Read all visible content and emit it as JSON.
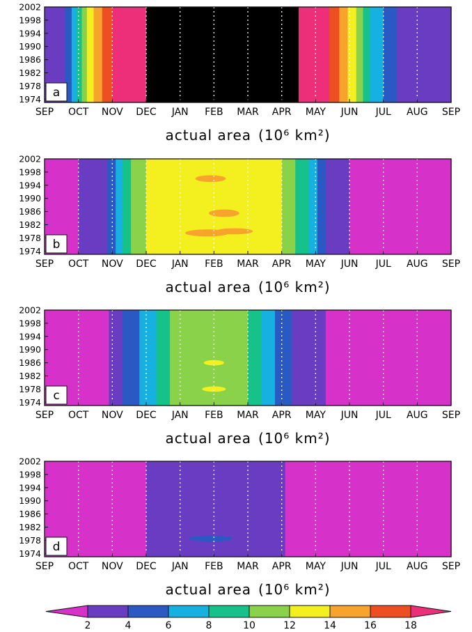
{
  "chart_data": {
    "type": "heatmap",
    "panels": [
      {
        "label": "a",
        "xlabel": "actual area",
        "x_unit": "(10⁶ km²)",
        "x_ticks": [
          "SEP",
          "OCT",
          "NOV",
          "DEC",
          "JAN",
          "FEB",
          "MAR",
          "APR",
          "MAY",
          "JUN",
          "JUL",
          "AUG",
          "SEP"
        ],
        "y_ticks": [
          "2002",
          "1998",
          "1994",
          "1990",
          "1986",
          "1982",
          "1978",
          "1974"
        ],
        "y_range": [
          1973,
          2002
        ],
        "bands": [
          {
            "level": 1,
            "x0": 0.0,
            "x1": 0.6
          },
          {
            "level": 2,
            "x0": 0.6,
            "x1": 0.8
          },
          {
            "level": 3,
            "x0": 0.8,
            "x1": 0.95
          },
          {
            "level": 4,
            "x0": 0.95,
            "x1": 1.1
          },
          {
            "level": 5,
            "x0": 1.1,
            "x1": 1.25
          },
          {
            "level": 6,
            "x0": 1.25,
            "x1": 1.45
          },
          {
            "level": 7,
            "x0": 1.45,
            "x1": 1.7
          },
          {
            "level": 8,
            "x0": 1.7,
            "x1": 2.0
          },
          {
            "level": 9,
            "x0": 2.0,
            "x1": 3.0
          },
          {
            "level": 10,
            "x0": 3.0,
            "x1": 7.5
          },
          {
            "level": 9,
            "x0": 7.5,
            "x1": 8.4
          },
          {
            "level": 8,
            "x0": 8.4,
            "x1": 8.7
          },
          {
            "level": 7,
            "x0": 8.7,
            "x1": 8.95
          },
          {
            "level": 6,
            "x0": 8.95,
            "x1": 9.2
          },
          {
            "level": 5,
            "x0": 9.2,
            "x1": 9.4
          },
          {
            "level": 4,
            "x0": 9.4,
            "x1": 9.6
          },
          {
            "level": 3,
            "x0": 9.6,
            "x1": 10.0
          },
          {
            "level": 2,
            "x0": 10.0,
            "x1": 10.4
          },
          {
            "level": 1,
            "x0": 10.4,
            "x1": 12.0
          }
        ]
      },
      {
        "label": "b",
        "xlabel": "actual area",
        "x_unit": "(10⁶ km²)",
        "x_ticks": [
          "SEP",
          "OCT",
          "NOV",
          "DEC",
          "JAN",
          "FEB",
          "MAR",
          "APR",
          "MAY",
          "JUN",
          "JUL",
          "AUG",
          "SEP"
        ],
        "y_ticks": [
          "2002",
          "1998",
          "1994",
          "1990",
          "1986",
          "1982",
          "1978",
          "1974"
        ],
        "y_range": [
          1973,
          2002
        ],
        "bands": [
          {
            "level": 0,
            "x0": 0.0,
            "x1": 1.0
          },
          {
            "level": 1,
            "x0": 1.0,
            "x1": 1.85
          },
          {
            "level": 2,
            "x0": 1.85,
            "x1": 2.1
          },
          {
            "level": 3,
            "x0": 2.1,
            "x1": 2.3
          },
          {
            "level": 4,
            "x0": 2.3,
            "x1": 2.55
          },
          {
            "level": 5,
            "x0": 2.55,
            "x1": 3.0
          },
          {
            "level": 6,
            "x0": 3.0,
            "x1": 7.0
          },
          {
            "level": 5,
            "x0": 7.0,
            "x1": 7.4
          },
          {
            "level": 4,
            "x0": 7.4,
            "x1": 7.8
          },
          {
            "level": 3,
            "x0": 7.8,
            "x1": 8.05
          },
          {
            "level": 2,
            "x0": 8.05,
            "x1": 8.3
          },
          {
            "level": 1,
            "x0": 8.3,
            "x1": 9.0
          },
          {
            "level": 0,
            "x0": 9.0,
            "x1": 12.0
          }
        ],
        "patches": [
          {
            "level": 7,
            "x": 4.9,
            "y": 1996,
            "w": 0.9,
            "h": 1.2
          },
          {
            "level": 7,
            "x": 5.3,
            "y": 1985.5,
            "w": 0.9,
            "h": 1.4
          },
          {
            "level": 7,
            "x": 4.8,
            "y": 1979.5,
            "w": 1.3,
            "h": 1.3
          },
          {
            "level": 7,
            "x": 5.6,
            "y": 1980,
            "w": 1.1,
            "h": 1.0
          }
        ]
      },
      {
        "label": "c",
        "xlabel": "actual area",
        "x_unit": "(10⁶ km²)",
        "x_ticks": [
          "SEP",
          "OCT",
          "NOV",
          "DEC",
          "JAN",
          "FEB",
          "MAR",
          "APR",
          "MAY",
          "JUN",
          "JUL",
          "AUG",
          "SEP"
        ],
        "y_ticks": [
          "2002",
          "1998",
          "1994",
          "1990",
          "1986",
          "1982",
          "1978",
          "1974"
        ],
        "y_range": [
          1973,
          2002
        ],
        "bands": [
          {
            "level": 0,
            "x0": 0.0,
            "x1": 1.9
          },
          {
            "level": 1,
            "x0": 1.9,
            "x1": 2.3
          },
          {
            "level": 2,
            "x0": 2.3,
            "x1": 2.8
          },
          {
            "level": 3,
            "x0": 2.8,
            "x1": 3.3
          },
          {
            "level": 4,
            "x0": 3.3,
            "x1": 3.7
          },
          {
            "level": 5,
            "x0": 3.7,
            "x1": 6.0
          },
          {
            "level": 4,
            "x0": 6.0,
            "x1": 6.4
          },
          {
            "level": 3,
            "x0": 6.4,
            "x1": 6.8
          },
          {
            "level": 2,
            "x0": 6.8,
            "x1": 7.3
          },
          {
            "level": 1,
            "x0": 7.3,
            "x1": 8.3
          },
          {
            "level": 0,
            "x0": 8.3,
            "x1": 12.0
          }
        ],
        "patches": [
          {
            "level": 6,
            "x": 5.0,
            "y": 1986,
            "w": 0.6,
            "h": 0.8
          },
          {
            "level": 6,
            "x": 5.0,
            "y": 1978,
            "w": 0.7,
            "h": 0.8
          }
        ]
      },
      {
        "label": "d",
        "xlabel": "actual area",
        "x_unit": "(10⁶ km²)",
        "x_ticks": [
          "SEP",
          "OCT",
          "NOV",
          "DEC",
          "JAN",
          "FEB",
          "MAR",
          "APR",
          "MAY",
          "JUN",
          "JUL",
          "AUG",
          "SEP"
        ],
        "y_ticks": [
          "2002",
          "1998",
          "1994",
          "1990",
          "1986",
          "1982",
          "1978",
          "1974"
        ],
        "y_range": [
          1973,
          2002
        ],
        "bands": [
          {
            "level": 0,
            "x0": 0.0,
            "x1": 3.0
          },
          {
            "level": 1,
            "x0": 3.0,
            "x1": 7.1
          },
          {
            "level": 0,
            "x0": 7.1,
            "x1": 12.0
          }
        ],
        "patches": [
          {
            "level": 2,
            "x": 4.9,
            "y": 1978.5,
            "w": 1.3,
            "h": 1.0
          }
        ]
      }
    ],
    "colorbar": {
      "levels": [
        2,
        4,
        6,
        8,
        10,
        12,
        14,
        16,
        18
      ],
      "tick_labels": [
        "2",
        "4",
        "6",
        "8",
        "10",
        "12",
        "14",
        "16",
        "18"
      ],
      "colors": [
        "#d631c9",
        "#6a3cc2",
        "#2b59c3",
        "#16b1e0",
        "#17c18a",
        "#8ad24a",
        "#f4ef1e",
        "#f7a32c",
        "#ed4f23",
        "#ec2f78"
      ]
    }
  }
}
